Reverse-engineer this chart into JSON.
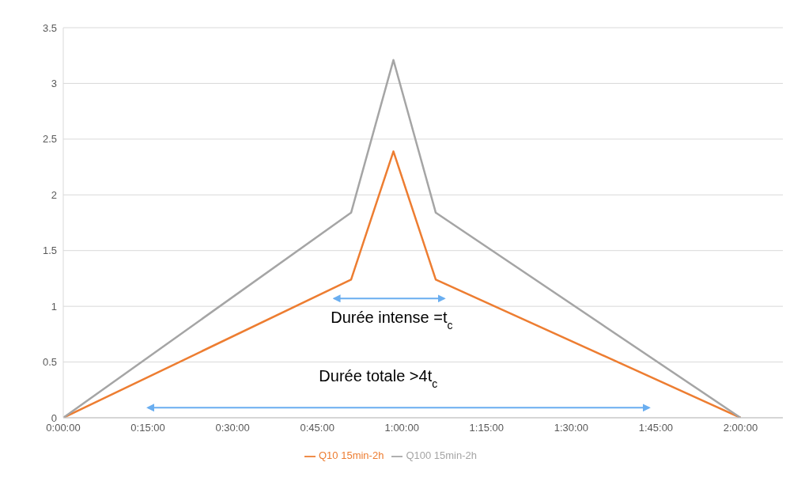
{
  "chart_data": {
    "type": "line",
    "x": [
      0,
      0.85,
      0.975,
      1.1,
      2
    ],
    "series": [
      {
        "name": "Q10 15min-2h",
        "color": "#ed7d31",
        "values": [
          0,
          1.24,
          2.39,
          1.24,
          0
        ]
      },
      {
        "name": "Q100 15min-2h",
        "color": "#a5a5a5",
        "values": [
          0,
          1.84,
          3.21,
          1.84,
          0
        ]
      }
    ],
    "xlim": [
      0,
      2.125
    ],
    "xticks": [
      {
        "value": 0,
        "label": "0:00:00"
      },
      {
        "value": 0.25,
        "label": "0:15:00"
      },
      {
        "value": 0.5,
        "label": "0:30:00"
      },
      {
        "value": 0.75,
        "label": "0:45:00"
      },
      {
        "value": 1,
        "label": "1:00:00"
      },
      {
        "value": 1.25,
        "label": "1:15:00"
      },
      {
        "value": 1.5,
        "label": "1:30:00"
      },
      {
        "value": 1.75,
        "label": "1:45:00"
      },
      {
        "value": 2,
        "label": "2:00:00"
      }
    ],
    "ylim": [
      0,
      3.5
    ],
    "yticks": [
      0,
      0.5,
      1,
      1.5,
      2,
      2.5,
      3,
      3.5
    ],
    "grid": "y",
    "legend": "bottom",
    "marker": "none",
    "line_style": "solid",
    "annotations": [
      "Durée intense =t$_{c}$",
      "Durée totale >4t$_{c}$"
    ]
  }
}
